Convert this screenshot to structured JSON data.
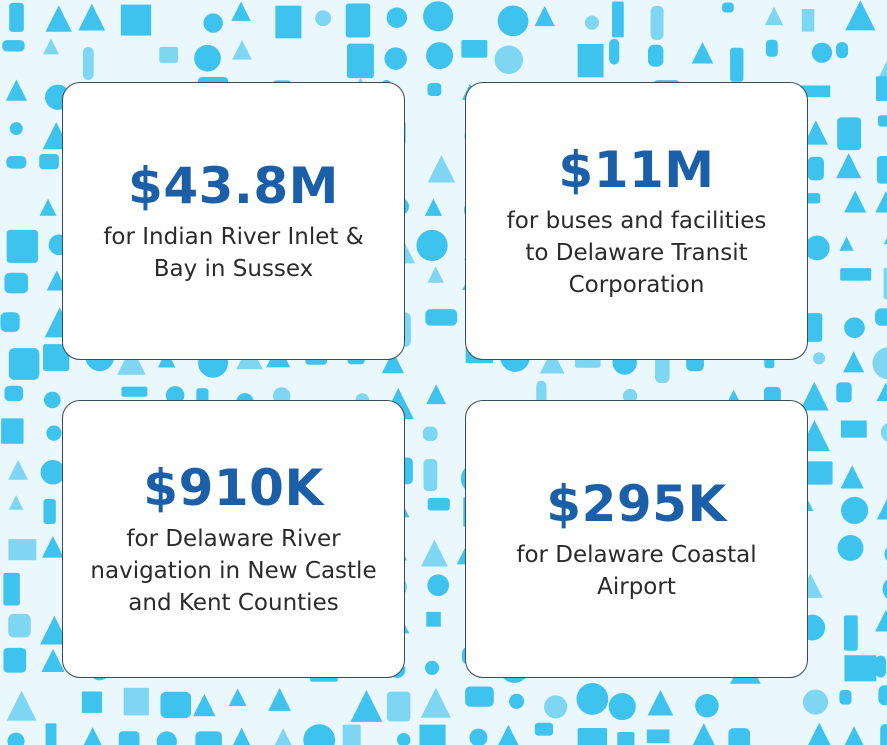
{
  "cards": [
    {
      "amount": "$43.8M",
      "lines": [
        "for Indian River Inlet &",
        "Bay in Sussex"
      ]
    },
    {
      "amount": "$11M",
      "lines": [
        "for buses and facilities",
        "to Delaware Transit",
        "Corporation"
      ]
    },
    {
      "amount": "$910K",
      "lines": [
        "for Delaware River",
        "navigation in New Castle",
        "and Kent Counties"
      ]
    },
    {
      "amount": "$295K",
      "lines": [
        "for Delaware Coastal",
        "Airport"
      ]
    }
  ]
}
